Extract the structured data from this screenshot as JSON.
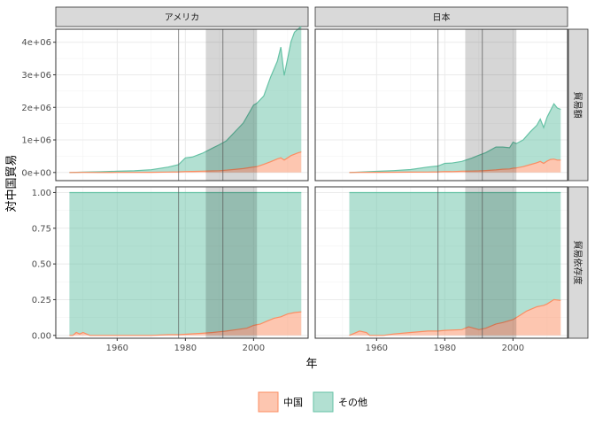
{
  "chart_data": {
    "type": "area",
    "xlabel": "年",
    "ylabel": "対中国貿易",
    "columns": [
      "アメリカ",
      "日本"
    ],
    "rows": [
      "貿易額",
      "貿易依存度"
    ],
    "xlim": [
      1942,
      2016
    ],
    "xticks": [
      1960,
      1980,
      2000
    ],
    "xtick_labels": [
      "1960",
      "1980",
      "2000"
    ],
    "ylims": [
      [
        -250000,
        4400000
      ],
      [
        -0.02,
        1.04
      ]
    ],
    "yticks": [
      [
        0,
        1000000,
        2000000,
        3000000,
        4000000
      ],
      [
        0,
        0.25,
        0.5,
        0.75,
        1.0
      ]
    ],
    "ytick_labels": [
      [
        "0e+00",
        "1e+06",
        "2e+06",
        "3e+06",
        "4e+06"
      ],
      [
        "0.00",
        "0.25",
        "0.50",
        "0.75",
        "1.00"
      ]
    ],
    "shaded_period": [
      1986,
      2001
    ],
    "vlines": [
      1978,
      1991
    ],
    "colors": {
      "china": "#fc8d62",
      "other": "#66c2a5"
    },
    "legend": {
      "position": "bottom",
      "items": [
        {
          "key": "china",
          "label": "中国"
        },
        {
          "key": "other",
          "label": "その他"
        }
      ]
    },
    "panels": [
      {
        "column": "アメリカ",
        "row": "貿易額",
        "years": [
          1946,
          1950,
          1955,
          1960,
          1965,
          1970,
          1975,
          1978,
          1980,
          1982,
          1985,
          1988,
          1990,
          1992,
          1995,
          1997,
          2000,
          2001,
          2003,
          2005,
          2007,
          2008,
          2009,
          2011,
          2012,
          2013,
          2014
        ],
        "china": [
          0,
          2000,
          1000,
          2000,
          3000,
          5000,
          15000,
          20000,
          30000,
          32000,
          40000,
          50000,
          55000,
          70000,
          100000,
          120000,
          170000,
          180000,
          250000,
          330000,
          420000,
          450000,
          380000,
          520000,
          560000,
          600000,
          630000
        ],
        "other": [
          0,
          10000,
          20000,
          35000,
          50000,
          80000,
          150000,
          220000,
          420000,
          440000,
          550000,
          700000,
          800000,
          900000,
          1200000,
          1400000,
          1900000,
          1950000,
          2100000,
          2600000,
          3000000,
          3400000,
          2600000,
          3500000,
          3750000,
          3800000,
          3850000
        ]
      },
      {
        "column": "日本",
        "row": "貿易額",
        "years": [
          1952,
          1955,
          1960,
          1965,
          1970,
          1975,
          1978,
          1980,
          1982,
          1985,
          1988,
          1990,
          1992,
          1995,
          1997,
          1999,
          2000,
          2001,
          2003,
          2005,
          2007,
          2008,
          2009,
          2010,
          2011,
          2012,
          2013,
          2014
        ],
        "china": [
          0,
          3000,
          5000,
          8000,
          10000,
          15000,
          20000,
          30000,
          28000,
          40000,
          45000,
          50000,
          60000,
          80000,
          100000,
          110000,
          130000,
          140000,
          180000,
          240000,
          300000,
          340000,
          280000,
          350000,
          400000,
          410000,
          380000,
          380000
        ],
        "other": [
          0,
          10000,
          30000,
          50000,
          80000,
          150000,
          180000,
          250000,
          260000,
          300000,
          400000,
          480000,
          550000,
          700000,
          680000,
          650000,
          800000,
          750000,
          820000,
          1000000,
          1150000,
          1300000,
          1100000,
          1350000,
          1500000,
          1700000,
          1600000,
          1560000
        ]
      },
      {
        "column": "アメリカ",
        "row": "貿易依存度",
        "years": [
          1946,
          1947,
          1948,
          1949,
          1950,
          1952,
          1955,
          1960,
          1965,
          1970,
          1975,
          1977,
          1978,
          1980,
          1985,
          1988,
          1990,
          1992,
          1995,
          1998,
          2000,
          2002,
          2004,
          2006,
          2008,
          2009,
          2010,
          2012,
          2014
        ],
        "china": [
          0.0,
          0.0,
          0.02,
          0.01,
          0.02,
          0.0,
          0.0,
          0.0,
          0.0,
          0.0,
          0.005,
          0.005,
          0.005,
          0.008,
          0.015,
          0.02,
          0.025,
          0.03,
          0.04,
          0.05,
          0.07,
          0.08,
          0.1,
          0.12,
          0.13,
          0.14,
          0.15,
          0.16,
          0.165
        ],
        "other": [
          1.0,
          1.0,
          0.98,
          0.99,
          0.98,
          1.0,
          1.0,
          1.0,
          1.0,
          1.0,
          0.995,
          0.995,
          0.995,
          0.992,
          0.985,
          0.98,
          0.975,
          0.97,
          0.96,
          0.95,
          0.93,
          0.92,
          0.9,
          0.88,
          0.87,
          0.86,
          0.85,
          0.84,
          0.835
        ]
      },
      {
        "column": "日本",
        "row": "貿易依存度",
        "years": [
          1952,
          1953,
          1955,
          1957,
          1958,
          1960,
          1962,
          1965,
          1970,
          1975,
          1978,
          1980,
          1985,
          1987,
          1990,
          1992,
          1995,
          1997,
          2000,
          2002,
          2004,
          2006,
          2007,
          2008,
          2009,
          2010,
          2012,
          2014
        ],
        "china": [
          0.0,
          0.01,
          0.03,
          0.02,
          0.0,
          0.0,
          0.0,
          0.01,
          0.02,
          0.03,
          0.03,
          0.035,
          0.04,
          0.06,
          0.04,
          0.05,
          0.08,
          0.09,
          0.11,
          0.14,
          0.17,
          0.19,
          0.2,
          0.205,
          0.21,
          0.22,
          0.25,
          0.245
        ],
        "other": [
          1.0,
          0.99,
          0.97,
          0.98,
          1.0,
          1.0,
          1.0,
          0.99,
          0.98,
          0.97,
          0.97,
          0.965,
          0.96,
          0.94,
          0.96,
          0.95,
          0.92,
          0.91,
          0.89,
          0.86,
          0.83,
          0.81,
          0.8,
          0.795,
          0.79,
          0.78,
          0.75,
          0.755
        ]
      }
    ]
  }
}
